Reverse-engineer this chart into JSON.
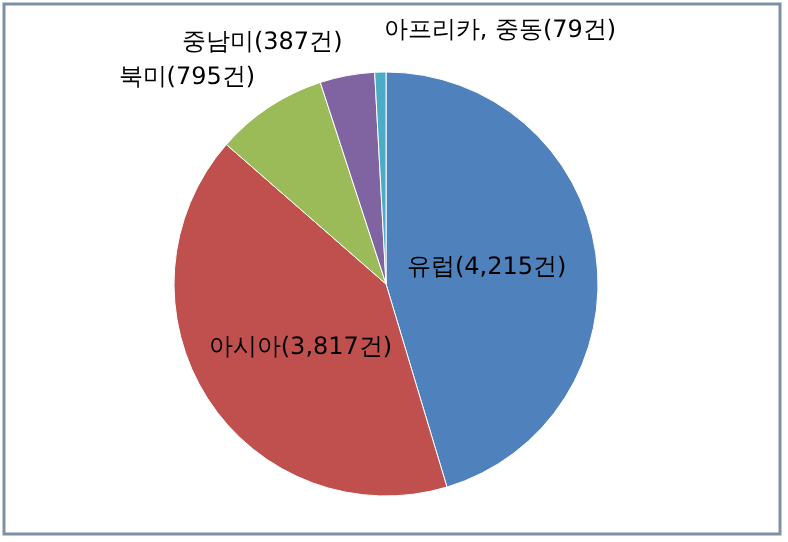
{
  "chart_data": {
    "type": "pie",
    "categories": [
      "유럽",
      "아시아",
      "북미",
      "중남미",
      "아프리카, 중동"
    ],
    "values": [
      4215,
      3817,
      795,
      387,
      79
    ],
    "colors": [
      "#4f81bd",
      "#c0504d",
      "#9bbb59",
      "#8064a2",
      "#4bacc6"
    ],
    "value_labels": [
      "(4,215건)",
      "(3,817건)",
      "(795건)",
      "(387건)",
      "(79건)"
    ]
  }
}
